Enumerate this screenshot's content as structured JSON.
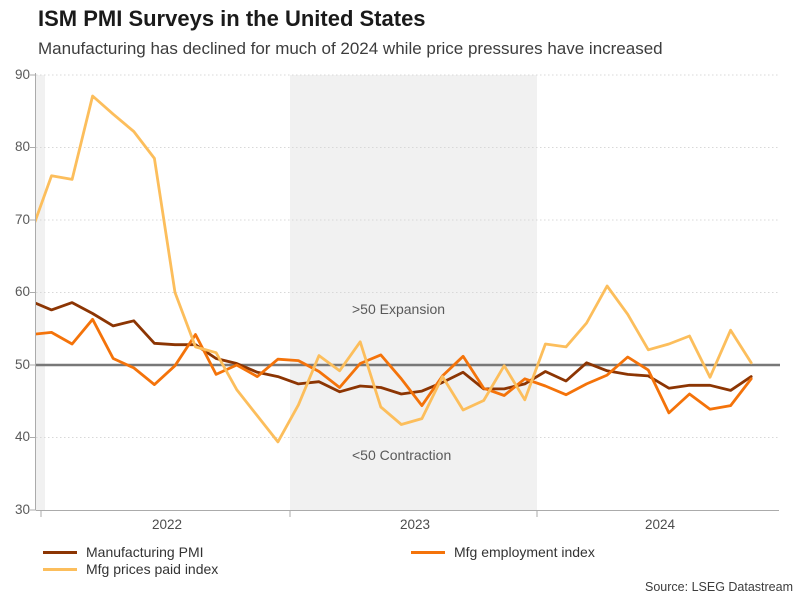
{
  "header": {
    "title": "ISM PMI Surveys in the United States",
    "subtitle": "Manufacturing has declined for much of 2024 while price pressures have increased"
  },
  "chart_data": {
    "type": "line",
    "title": "ISM PMI Surveys in the United States",
    "subtitle": "Manufacturing has declined for much of 2024 while price pressures have increased",
    "x_unit": "month",
    "x": [
      "Dec 2021",
      "Jan 2022",
      "Feb 2022",
      "Mar 2022",
      "Apr 2022",
      "May 2022",
      "Jun 2022",
      "Jul 2022",
      "Aug 2022",
      "Sep 2022",
      "Oct 2022",
      "Nov 2022",
      "Dec 2022",
      "Jan 2023",
      "Feb 2023",
      "Mar 2023",
      "Apr 2023",
      "May 2023",
      "Jun 2023",
      "Jul 2023",
      "Aug 2023",
      "Sep 2023",
      "Oct 2023",
      "Nov 2023",
      "Dec 2023",
      "Jan 2024",
      "Feb 2024",
      "Mar 2024",
      "Apr 2024",
      "May 2024",
      "Jun 2024",
      "Jul 2024",
      "Aug 2024",
      "Sep 2024",
      "Oct 2024",
      "Nov 2024"
    ],
    "series": [
      {
        "name": "Manufacturing PMI",
        "color": "#8C3503",
        "values": [
          58.8,
          57.6,
          58.6,
          57.1,
          55.4,
          56.1,
          53.0,
          52.8,
          52.8,
          50.9,
          50.2,
          49.0,
          48.4,
          47.4,
          47.7,
          46.3,
          47.1,
          46.9,
          46.0,
          46.4,
          47.6,
          49.0,
          46.7,
          46.7,
          47.4,
          49.1,
          47.8,
          50.3,
          49.2,
          48.7,
          48.5,
          46.8,
          47.2,
          47.2,
          46.5,
          48.4
        ]
      },
      {
        "name": "Mfg employment index",
        "color": "#F4730A",
        "values": [
          54.2,
          54.5,
          52.9,
          56.3,
          50.9,
          49.6,
          47.3,
          49.9,
          54.2,
          48.7,
          50.0,
          48.4,
          50.8,
          50.6,
          49.1,
          46.9,
          50.2,
          51.4,
          48.1,
          44.4,
          48.5,
          51.2,
          46.8,
          45.8,
          48.1,
          47.1,
          45.9,
          47.4,
          48.6,
          51.1,
          49.3,
          43.4,
          46.0,
          43.9,
          44.4,
          48.1
        ]
      },
      {
        "name": "Mfg prices paid index",
        "color": "#FCBE5C",
        "values": [
          68.2,
          76.1,
          75.6,
          87.1,
          84.6,
          82.2,
          78.5,
          60.0,
          52.5,
          51.7,
          46.6,
          43.0,
          39.4,
          44.5,
          51.3,
          49.2,
          53.2,
          44.2,
          41.8,
          42.6,
          48.4,
          43.8,
          45.1,
          49.9,
          45.2,
          52.9,
          52.5,
          55.8,
          60.9,
          57.0,
          52.1,
          52.9,
          54.0,
          48.3,
          54.8,
          50.3
        ]
      }
    ],
    "ylim": [
      30,
      90
    ],
    "yticks": [
      30,
      40,
      50,
      60,
      70,
      80,
      90
    ],
    "year_labels": [
      "2022",
      "2023",
      "2024"
    ],
    "reference_line": {
      "value": 50,
      "color": "#787878"
    },
    "annotations": [
      ">50 Expansion",
      "<50 Contraction"
    ],
    "shaded_regions": [
      "late 2021 sliver at left edge",
      "calendar year 2023"
    ],
    "shade_color": "#F1F1F1",
    "grid": "dotted horizontal lines at 40, 60, 70, 80, 90",
    "legend_position": "bottom, two columns"
  },
  "legend": {
    "items": [
      {
        "label": "Manufacturing PMI",
        "color": "#8C3503"
      },
      {
        "label": "Mfg employment index",
        "color": "#F4730A"
      },
      {
        "label": "Mfg prices paid index",
        "color": "#FCBE5C"
      }
    ]
  },
  "source": "Source: LSEG Datastream"
}
